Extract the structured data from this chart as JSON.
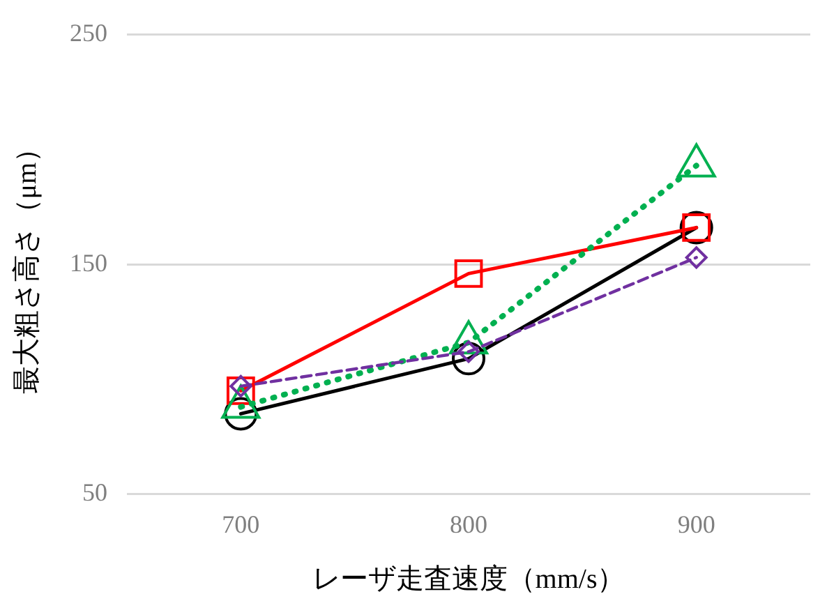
{
  "chart_data": {
    "type": "line",
    "xlabel": "レーザ走査速度（mm/s）",
    "ylabel": "最大粗さ高さ（μm）",
    "categories": [
      "700",
      "800",
      "900"
    ],
    "series": [
      {
        "color": "#000000",
        "values": [
          85,
          109,
          166
        ],
        "marker": "circle",
        "line_style": "solid"
      },
      {
        "color": "#ff0000",
        "values": [
          95,
          146,
          166
        ],
        "marker": "square",
        "line_style": "solid"
      },
      {
        "color": "#00b050",
        "values": [
          88,
          116,
          193
        ],
        "marker": "triangle",
        "line_style": "dotted"
      },
      {
        "color": "#7030a0",
        "values": [
          97,
          112,
          153
        ],
        "marker": "diamond",
        "line_style": "dashed"
      }
    ],
    "ylim": [
      50,
      250
    ],
    "yticks": [
      50,
      150,
      250
    ],
    "grid": "y",
    "legend": false
  }
}
